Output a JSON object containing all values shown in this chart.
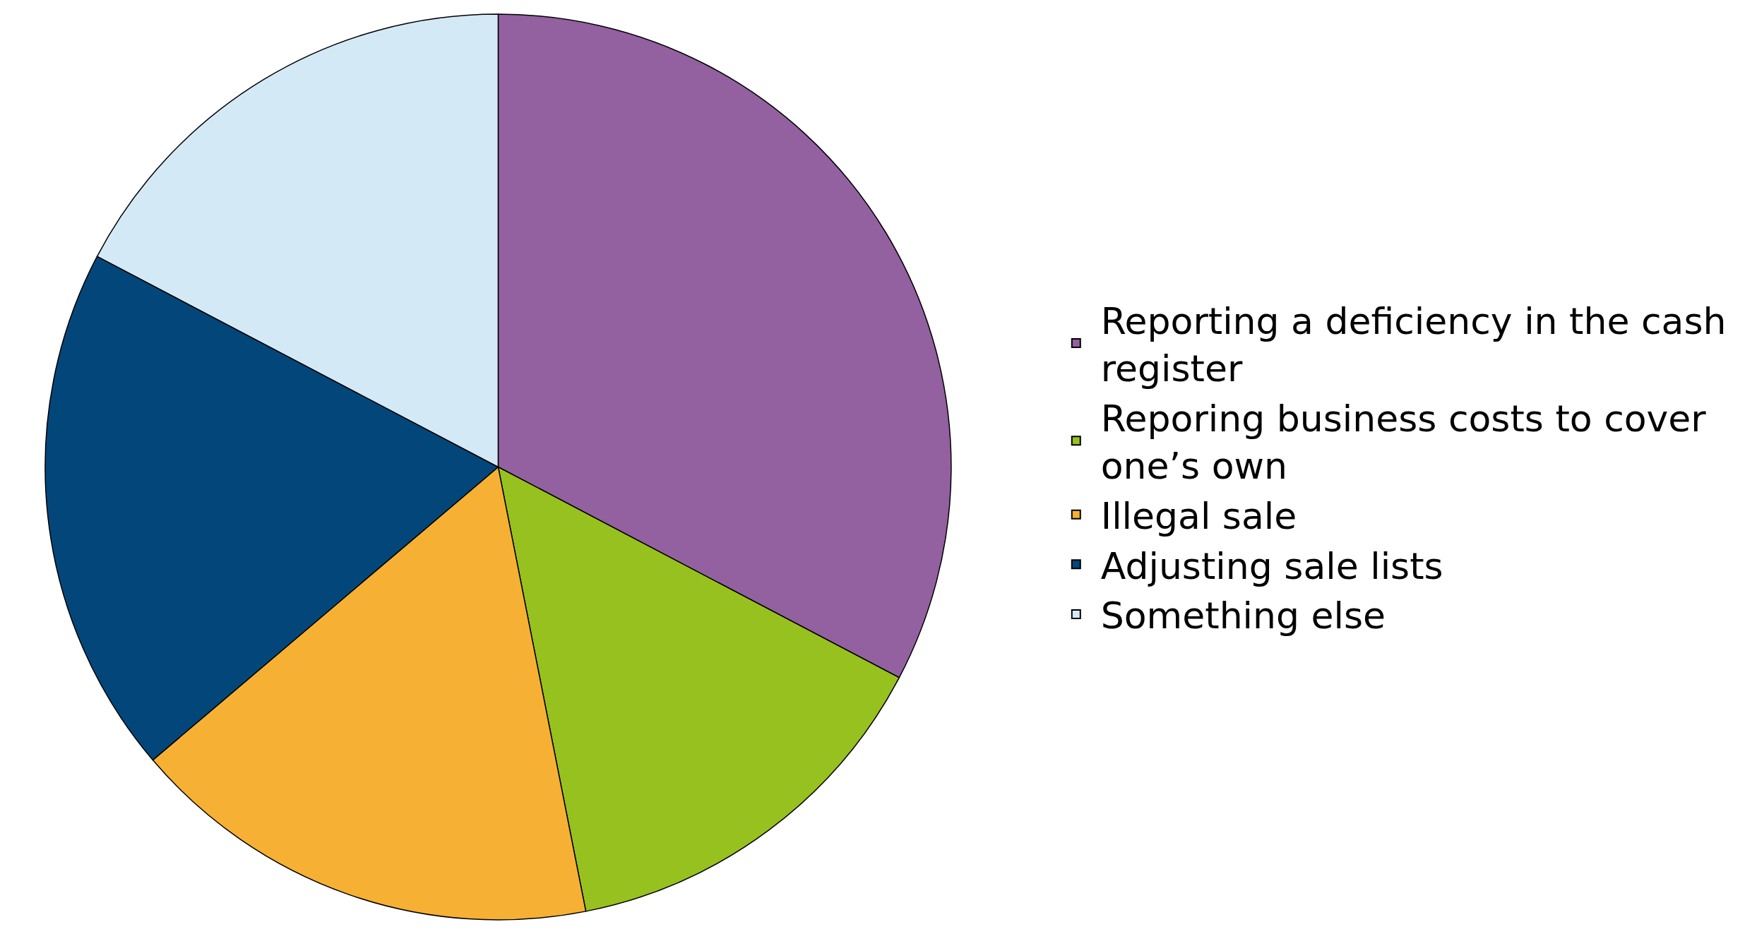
{
  "chart_data": {
    "type": "pie",
    "categories": [
      "Reporting a deficiency in the cash register",
      "Reporing business costs to cover one’s own",
      "Illegal sale",
      "Adjusting sale lists",
      "Something else"
    ],
    "values": [
      32.7,
      14.2,
      16.9,
      18.9,
      17.3
    ],
    "colors": [
      "#9360a0",
      "#97c11f",
      "#f6b033",
      "#03477a",
      "#d4e9f6"
    ],
    "legend": "right"
  }
}
